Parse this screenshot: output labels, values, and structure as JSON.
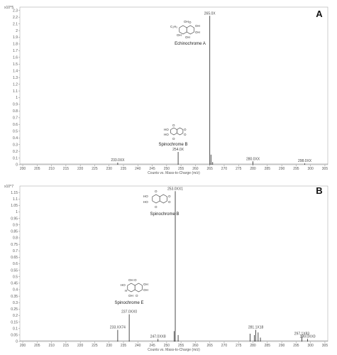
{
  "chart_data": [
    {
      "type": "bar",
      "panel_label": "A",
      "y_scale_label": "x10^5",
      "xlabel": "Counts vs. Mass-to-Charge (m/z)",
      "xlim": [
        199,
        306
      ],
      "ylim": [
        0,
        2.35
      ],
      "x_ticks": [
        200,
        205,
        210,
        215,
        220,
        225,
        230,
        235,
        240,
        245,
        250,
        255,
        260,
        265,
        270,
        275,
        280,
        285,
        290,
        295,
        300,
        305
      ],
      "y_ticks": [
        "0",
        "0.1",
        "0.2",
        "0.3",
        "0.4",
        "0.5",
        "0.6",
        "0.7",
        "0.8",
        "0.9",
        "1",
        "1.1",
        "1.2",
        "1.3",
        "1.4",
        "1.5",
        "1.6",
        "1.7",
        "1.8",
        "1.9",
        "2",
        "2.1",
        "2.2",
        "2.3"
      ],
      "compound_name": "Echinochrome A",
      "compound_name_2": "Spinochrome B",
      "peaks": [
        {
          "x": 233.0,
          "y": 0.03,
          "label": "233.0XX"
        },
        {
          "x": 254.0,
          "y": 0.19,
          "label": "254.0X"
        },
        {
          "x": 265.0,
          "y": 2.22,
          "label": "265.0X"
        },
        {
          "x": 265.4,
          "y": 0.15,
          "label": ""
        },
        {
          "x": 266.0,
          "y": 0.04,
          "label": ""
        },
        {
          "x": 280.0,
          "y": 0.05,
          "label": "280.0XX"
        },
        {
          "x": 298.0,
          "y": 0.02,
          "label": "298.0XX"
        }
      ]
    },
    {
      "type": "bar",
      "panel_label": "B",
      "y_scale_label": "x10^7",
      "xlabel": "Counts vs. Mass-to-Charge (m/z)",
      "xlim": [
        199,
        306
      ],
      "ylim": [
        0,
        1.2
      ],
      "x_ticks": [
        200,
        205,
        210,
        215,
        220,
        225,
        230,
        235,
        240,
        245,
        250,
        255,
        260,
        265,
        270,
        275,
        280,
        285,
        290,
        295,
        300,
        305
      ],
      "y_ticks": [
        "0",
        "0.05",
        "0.1",
        "0.15",
        "0.2",
        "0.25",
        "0.3",
        "0.35",
        "0.4",
        "0.45",
        "0.5",
        "0.55",
        "0.6",
        "0.65",
        "0.7",
        "0.75",
        "0.8",
        "0.85",
        "0.9",
        "0.95",
        "1",
        "1.05",
        "1.1",
        "1.15"
      ],
      "compound_name": "Spinochrome B",
      "compound_name_2": "Spinochrome E",
      "peaks": [
        {
          "x": 233.0,
          "y": 0.09,
          "label": "233.XX74"
        },
        {
          "x": 237.0,
          "y": 0.21,
          "label": "237.0XX0"
        },
        {
          "x": 247.0,
          "y": 0.02,
          "label": "247.0XX8"
        },
        {
          "x": 253.0,
          "y": 1.16,
          "label": "253.0XX1"
        },
        {
          "x": 252.6,
          "y": 0.08,
          "label": ""
        },
        {
          "x": 254.0,
          "y": 0.05,
          "label": ""
        },
        {
          "x": 279.0,
          "y": 0.06,
          "label": ""
        },
        {
          "x": 280.5,
          "y": 0.05,
          "label": ""
        },
        {
          "x": 281.0,
          "y": 0.09,
          "label": "281.1X18"
        },
        {
          "x": 281.8,
          "y": 0.07,
          "label": ""
        },
        {
          "x": 282.6,
          "y": 0.03,
          "label": ""
        },
        {
          "x": 297.0,
          "y": 0.04,
          "label": "297.1X83"
        },
        {
          "x": 299.0,
          "y": 0.02,
          "label": "299.0XX0"
        }
      ]
    }
  ]
}
